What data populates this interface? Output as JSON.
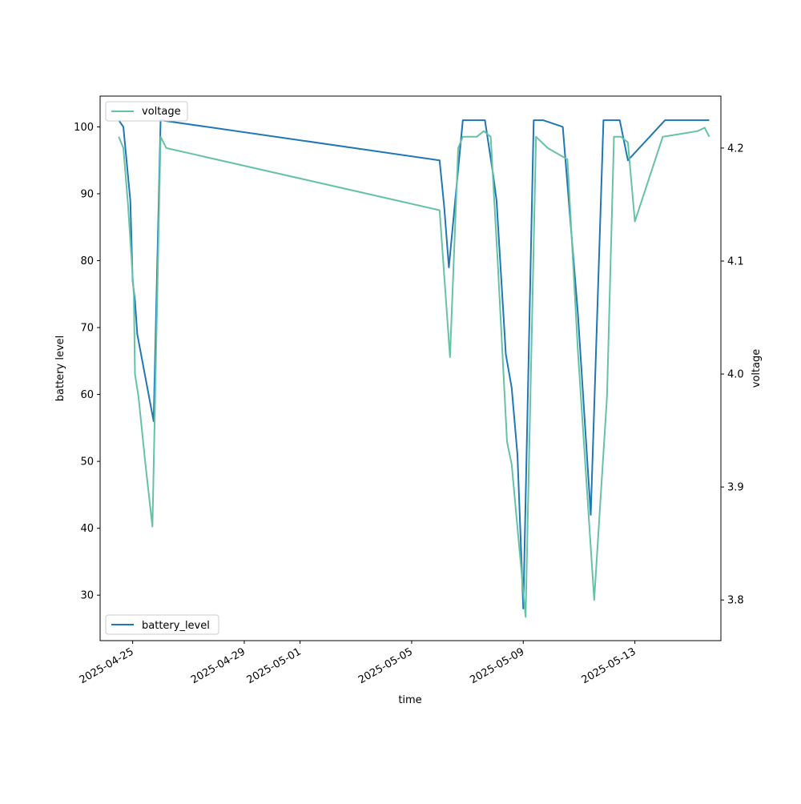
{
  "chart_data": {
    "type": "line",
    "xlabel": "time",
    "ylabel_left": "battery level",
    "ylabel_right": "voltage",
    "x_ticks": [
      "2025-04-25",
      "2025-04-29",
      "2025-05-01",
      "2025-05-05",
      "2025-05-09",
      "2025-05-13"
    ],
    "x_range": [
      "2025-04-23T20:00",
      "2025-05-16T02:00"
    ],
    "y_left_ticks": [
      30,
      40,
      50,
      60,
      70,
      80,
      90,
      100
    ],
    "y_left_range": [
      23.2,
      104.6
    ],
    "y_right_ticks": [
      "3.8",
      "3.9",
      "4.0",
      "4.1",
      "4.2"
    ],
    "y_right_range": [
      3.764,
      4.246
    ],
    "legends": [
      {
        "label": "voltage",
        "position": "upper left"
      },
      {
        "label": "battery_level",
        "position": "lower left"
      }
    ],
    "series": [
      {
        "name": "battery_level",
        "axis": "left",
        "color": "#1f77b4",
        "points": [
          [
            "2025-04-24T12:00",
            101
          ],
          [
            "2025-04-24T16:00",
            100
          ],
          [
            "2025-04-24T22:00",
            89
          ],
          [
            "2025-04-25T00:00",
            77
          ],
          [
            "2025-04-25T02:00",
            74
          ],
          [
            "2025-04-25T04:00",
            69
          ],
          [
            "2025-04-25T18:00",
            56
          ],
          [
            "2025-04-26T00:00",
            101
          ],
          [
            "2025-05-06T00:00",
            95
          ],
          [
            "2025-05-06T04:00",
            88
          ],
          [
            "2025-05-06T08:00",
            79
          ],
          [
            "2025-05-06T20:00",
            101
          ],
          [
            "2025-05-07T15:00",
            101
          ],
          [
            "2025-05-07T22:00",
            93
          ],
          [
            "2025-05-08T01:00",
            89
          ],
          [
            "2025-05-08T09:00",
            66
          ],
          [
            "2025-05-08T14:00",
            61
          ],
          [
            "2025-05-08T19:00",
            51
          ],
          [
            "2025-05-09T00:00",
            28
          ],
          [
            "2025-05-09T09:00",
            101
          ],
          [
            "2025-05-09T17:00",
            101
          ],
          [
            "2025-05-10T10:00",
            100
          ],
          [
            "2025-05-10T23:00",
            72
          ],
          [
            "2025-05-11T10:00",
            42
          ],
          [
            "2025-05-11T21:00",
            101
          ],
          [
            "2025-05-12T11:00",
            101
          ],
          [
            "2025-05-12T18:00",
            95
          ],
          [
            "2025-05-14T02:00",
            101
          ],
          [
            "2025-05-15T16:00",
            101
          ]
        ]
      },
      {
        "name": "voltage",
        "axis": "right",
        "color": "#66c2a5",
        "points": [
          [
            "2025-04-24T12:00",
            4.21
          ],
          [
            "2025-04-24T16:00",
            4.2
          ],
          [
            "2025-04-24T20:00",
            4.15
          ],
          [
            "2025-04-25T01:00",
            4.07
          ],
          [
            "2025-04-25T02:00",
            4.0
          ],
          [
            "2025-04-25T05:00",
            3.98
          ],
          [
            "2025-04-25T11:00",
            3.92
          ],
          [
            "2025-04-25T17:00",
            3.865
          ],
          [
            "2025-04-26T00:00",
            4.21
          ],
          [
            "2025-04-26T05:00",
            4.2
          ],
          [
            "2025-05-06T00:00",
            4.145
          ],
          [
            "2025-05-06T09:00",
            4.015
          ],
          [
            "2025-05-06T16:00",
            4.2
          ],
          [
            "2025-05-06T20:00",
            4.21
          ],
          [
            "2025-05-07T08:00",
            4.21
          ],
          [
            "2025-05-07T14:00",
            4.215
          ],
          [
            "2025-05-07T20:00",
            4.21
          ],
          [
            "2025-05-08T02:00",
            4.1
          ],
          [
            "2025-05-08T10:00",
            3.94
          ],
          [
            "2025-05-08T14:00",
            3.92
          ],
          [
            "2025-05-08T22:00",
            3.83
          ],
          [
            "2025-05-09T02:00",
            3.785
          ],
          [
            "2025-05-09T11:00",
            4.21
          ],
          [
            "2025-05-09T21:00",
            4.2
          ],
          [
            "2025-05-10T14:00",
            4.19
          ],
          [
            "2025-05-10T23:00",
            4.02
          ],
          [
            "2025-05-11T13:00",
            3.8
          ],
          [
            "2025-05-12T00:00",
            3.98
          ],
          [
            "2025-05-12T06:00",
            4.21
          ],
          [
            "2025-05-12T12:00",
            4.21
          ],
          [
            "2025-05-12T18:00",
            4.205
          ],
          [
            "2025-05-13T00:00",
            4.135
          ],
          [
            "2025-05-14T00:00",
            4.21
          ],
          [
            "2025-05-14T12:00",
            4.212
          ],
          [
            "2025-05-15T06:00",
            4.215
          ],
          [
            "2025-05-15T12:00",
            4.218
          ],
          [
            "2025-05-15T16:00",
            4.21
          ]
        ]
      }
    ]
  }
}
